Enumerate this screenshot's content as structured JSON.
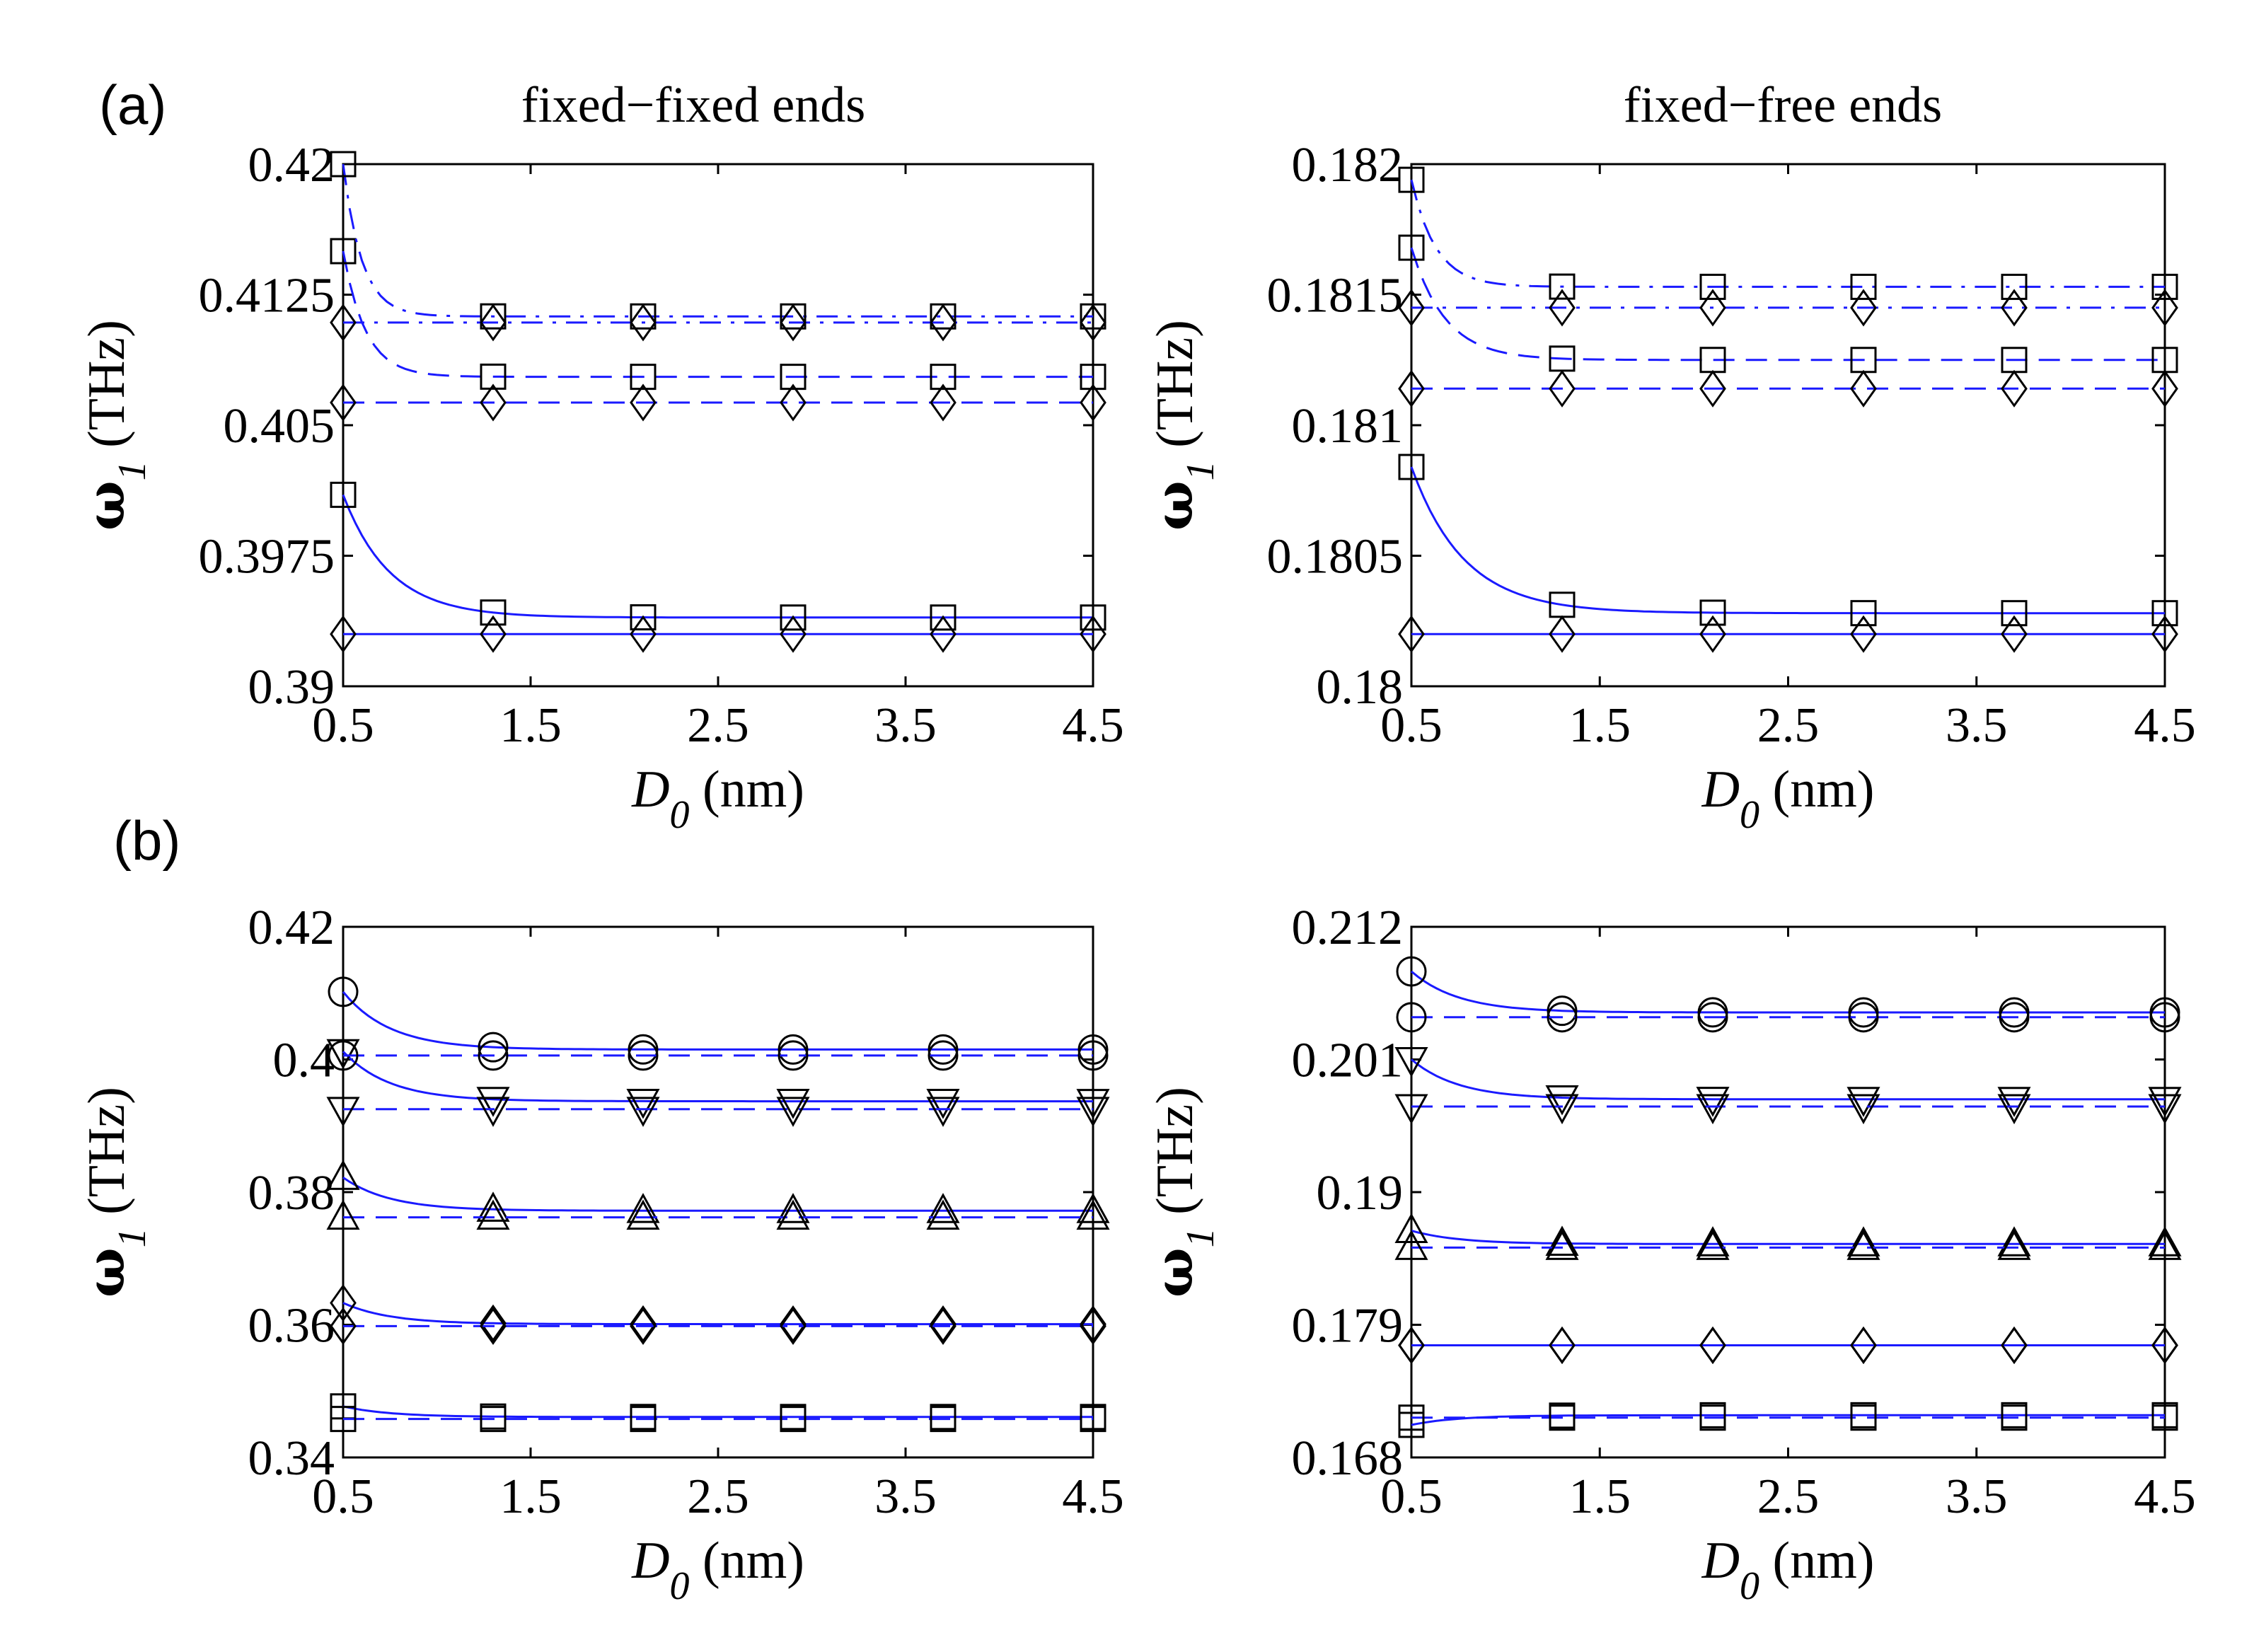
{
  "figure": {
    "panel_a_label": "(a)",
    "panel_b_label": "(b)",
    "col_title_left": "fixed−fixed ends",
    "col_title_right": "fixed−free ends"
  },
  "chart_data": [
    {
      "type": "line",
      "panel": "(a)",
      "title": "fixed−fixed ends",
      "xlabel": "D_0 (nm)",
      "ylabel": "ω_1 (THz)",
      "xlim": [
        0.5,
        4.5
      ],
      "ylim": [
        0.39,
        0.42
      ],
      "x_ticks": [
        "0.5",
        "1.5",
        "2.5",
        "3.5",
        "4.5"
      ],
      "y_ticks": [
        "0.39",
        "0.3975",
        "0.405",
        "0.4125",
        "0.42"
      ],
      "y_tick_values": [
        0.39,
        0.3975,
        0.405,
        0.4125,
        0.42
      ],
      "marker_x": [
        0.5,
        1.3,
        2.1,
        2.9,
        3.7,
        4.5
      ],
      "series": [
        {
          "name": "solid-curve",
          "style": "solid",
          "marker": "square",
          "model": "decay",
          "asym": 0.39395,
          "amp": 0.00705,
          "tau": 0.25
        },
        {
          "name": "solid-flat",
          "style": "solid",
          "marker": "diamond",
          "model": "flat",
          "value": 0.393
        },
        {
          "name": "dashed-curve",
          "style": "dashed",
          "marker": "square",
          "model": "decay",
          "asym": 0.40778,
          "amp": 0.00722,
          "tau": 0.12
        },
        {
          "name": "dashed-flat",
          "style": "dashed",
          "marker": "diamond",
          "model": "flat",
          "value": 0.4063
        },
        {
          "name": "dashdot-curve",
          "style": "dashdot",
          "marker": "square",
          "model": "decay",
          "asym": 0.41125,
          "amp": 0.00875,
          "tau": 0.1
        },
        {
          "name": "dashdot-flat",
          "style": "dashdot",
          "marker": "diamond",
          "model": "flat",
          "value": 0.4109
        }
      ]
    },
    {
      "type": "line",
      "panel": "(a)",
      "title": "fixed−free ends",
      "xlabel": "D_0 (nm)",
      "ylabel": "ω_1 (THz)",
      "xlim": [
        0.5,
        4.5
      ],
      "ylim": [
        0.18,
        0.182
      ],
      "x_ticks": [
        "0.5",
        "1.5",
        "2.5",
        "3.5",
        "4.5"
      ],
      "y_ticks": [
        "0.18",
        "0.1805",
        "0.181",
        "0.1815",
        "0.182"
      ],
      "y_tick_values": [
        0.18,
        0.1805,
        0.181,
        0.1815,
        0.182
      ],
      "marker_x": [
        0.5,
        1.3,
        2.1,
        2.9,
        3.7,
        4.5
      ],
      "series": [
        {
          "name": "solid-curve",
          "style": "solid",
          "marker": "square",
          "model": "decay",
          "asym": 0.18028,
          "amp": 0.00056,
          "tau": 0.28
        },
        {
          "name": "solid-flat",
          "style": "solid",
          "marker": "diamond",
          "model": "flat",
          "value": 0.1802
        },
        {
          "name": "dashed-curve",
          "style": "dashed",
          "marker": "square",
          "model": "decay",
          "asym": 0.18125,
          "amp": 0.00043,
          "tau": 0.18
        },
        {
          "name": "dashed-flat",
          "style": "dashed",
          "marker": "diamond",
          "model": "flat",
          "value": 0.18114
        },
        {
          "name": "dashdot-curve",
          "style": "dashdot",
          "marker": "square",
          "model": "decay",
          "asym": 0.18153,
          "amp": 0.00041,
          "tau": 0.13
        },
        {
          "name": "dashdot-flat",
          "style": "dashdot",
          "marker": "diamond",
          "model": "flat",
          "value": 0.18145
        }
      ]
    },
    {
      "type": "line",
      "panel": "(b)",
      "title": "",
      "xlabel": "D_0 (nm)",
      "ylabel": "ω_1 (THz)",
      "xlim": [
        0.5,
        4.5
      ],
      "ylim": [
        0.34,
        0.42
      ],
      "x_ticks": [
        "0.5",
        "1.5",
        "2.5",
        "3.5",
        "4.5"
      ],
      "y_ticks": [
        "0.34",
        "0.36",
        "0.38",
        "0.4",
        "0.42"
      ],
      "y_tick_values": [
        0.34,
        0.36,
        0.38,
        0.4,
        0.42
      ],
      "marker_x": [
        0.5,
        1.3,
        2.1,
        2.9,
        3.7,
        4.5
      ],
      "series": [
        {
          "name": "mode1-solid",
          "style": "solid",
          "marker": "square",
          "model": "decay",
          "asym": 0.3461,
          "amp": 0.0016,
          "tau": 0.25
        },
        {
          "name": "mode1-dashed",
          "style": "dashed",
          "marker": "square",
          "model": "flat",
          "value": 0.3458
        },
        {
          "name": "mode2-solid",
          "style": "solid",
          "marker": "diamond",
          "model": "decay",
          "asym": 0.3601,
          "amp": 0.0032,
          "tau": 0.25
        },
        {
          "name": "mode2-dashed",
          "style": "dashed",
          "marker": "diamond",
          "model": "flat",
          "value": 0.3598
        },
        {
          "name": "mode3-solid",
          "style": "solid",
          "marker": "triangle-up",
          "model": "decay",
          "asym": 0.3772,
          "amp": 0.005,
          "tau": 0.25
        },
        {
          "name": "mode3-dashed",
          "style": "dashed",
          "marker": "triangle-up",
          "model": "flat",
          "value": 0.3762
        },
        {
          "name": "mode4-solid",
          "style": "solid",
          "marker": "triangle-down",
          "model": "decay",
          "asym": 0.3937,
          "amp": 0.0075,
          "tau": 0.25
        },
        {
          "name": "mode4-dashed",
          "style": "dashed",
          "marker": "triangle-down",
          "model": "flat",
          "value": 0.3925
        },
        {
          "name": "mode5-solid",
          "style": "solid",
          "marker": "circle",
          "model": "decay",
          "asym": 0.4015,
          "amp": 0.0087,
          "tau": 0.25
        },
        {
          "name": "mode5-dashed",
          "style": "dashed",
          "marker": "circle",
          "model": "flat",
          "value": 0.4006
        }
      ]
    },
    {
      "type": "line",
      "panel": "(b)",
      "title": "",
      "xlabel": "D_0 (nm)",
      "ylabel": "ω_1 (THz)",
      "xlim": [
        0.5,
        4.5
      ],
      "ylim": [
        0.168,
        0.212
      ],
      "x_ticks": [
        "0.5",
        "1.5",
        "2.5",
        "3.5",
        "4.5"
      ],
      "y_ticks": [
        "0.168",
        "0.179",
        "0.19",
        "0.201",
        "0.212"
      ],
      "y_tick_values": [
        0.168,
        0.179,
        0.19,
        0.201,
        0.212
      ],
      "marker_x": [
        0.5,
        1.3,
        2.1,
        2.9,
        3.7,
        4.5
      ],
      "series": [
        {
          "name": "mode1-solid",
          "style": "solid",
          "marker": "square",
          "model": "decay",
          "asym": 0.1715,
          "amp": -0.0008,
          "tau": 0.25
        },
        {
          "name": "mode1-dashed",
          "style": "dashed",
          "marker": "square",
          "model": "flat",
          "value": 0.1713
        },
        {
          "name": "mode2-solid",
          "style": "solid",
          "marker": "diamond",
          "model": "flat",
          "value": 0.1773
        },
        {
          "name": "mode2-dashed",
          "style": "dashed",
          "marker": "diamond",
          "model": "flat",
          "value": 0.1773
        },
        {
          "name": "mode3-solid",
          "style": "solid",
          "marker": "triangle-up",
          "model": "decay",
          "asym": 0.1857,
          "amp": 0.0011,
          "tau": 0.25
        },
        {
          "name": "mode3-dashed",
          "style": "dashed",
          "marker": "triangle-up",
          "model": "flat",
          "value": 0.1854
        },
        {
          "name": "mode4-solid",
          "style": "solid",
          "marker": "triangle-down",
          "model": "decay",
          "asym": 0.1977,
          "amp": 0.0033,
          "tau": 0.25
        },
        {
          "name": "mode4-dashed",
          "style": "dashed",
          "marker": "triangle-down",
          "model": "flat",
          "value": 0.1971
        },
        {
          "name": "mode5-solid",
          "style": "solid",
          "marker": "circle",
          "model": "decay",
          "asym": 0.2049,
          "amp": 0.0034,
          "tau": 0.25
        },
        {
          "name": "mode5-dashed",
          "style": "dashed",
          "marker": "circle",
          "model": "flat",
          "value": 0.2045
        }
      ]
    }
  ]
}
